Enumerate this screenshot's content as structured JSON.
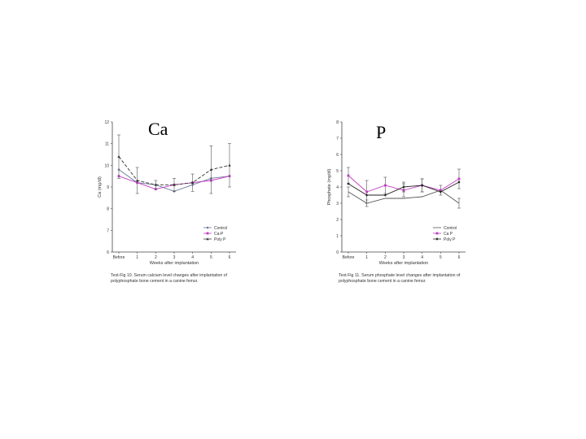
{
  "panels": {
    "left_letter": "Ca",
    "right_letter": "P"
  },
  "chart_data": [
    {
      "type": "line",
      "categories": [
        "Before",
        "1",
        "2",
        "3",
        "4",
        "5",
        "6"
      ],
      "ylabel": "Ca (mg/dl)",
      "xlabel": "Weeks after implantation",
      "ylim": [
        6,
        12
      ],
      "yticks": [
        "6",
        "7",
        "8",
        "9",
        "10",
        "11",
        "12"
      ],
      "caption": "Text-Fig 10. Serum calcium level changes after implantation of polyphosphate bone cement in a canine femur.",
      "legend_position": "bottom-right",
      "series": [
        {
          "name": "Control",
          "values": [
            9.8,
            9.2,
            9.1,
            8.8,
            9.1,
            9.4,
            9.5
          ],
          "marker": "circle",
          "color": "#6b7a99",
          "dash": "",
          "err": [
            0,
            0,
            0,
            0,
            0,
            0,
            0
          ]
        },
        {
          "name": "Ca-P",
          "values": [
            9.5,
            9.2,
            8.9,
            9.1,
            9.2,
            9.3,
            9.5
          ],
          "marker": "square",
          "color": "#c23cc0",
          "dash": "",
          "err": [
            0,
            0,
            0,
            0,
            0,
            0,
            0
          ]
        },
        {
          "name": "Poly P",
          "values": [
            10.4,
            9.3,
            9.1,
            9.1,
            9.2,
            9.8,
            10.0
          ],
          "marker": "triangle",
          "color": "#333333",
          "dash": "4,2",
          "err": [
            1.0,
            0.6,
            0.2,
            0.3,
            0.4,
            1.1,
            1.0
          ]
        }
      ]
    },
    {
      "type": "line",
      "categories": [
        "Before",
        "1",
        "2",
        "3",
        "4",
        "5",
        "6"
      ],
      "ylabel": "Phosphate (mg/dl)",
      "xlabel": "Weeks after implantation",
      "ylim": [
        0,
        8
      ],
      "yticks": [
        "0",
        "1",
        "2",
        "3",
        "4",
        "5",
        "6",
        "7",
        "8"
      ],
      "caption": "Text-Fig 11. Serum phosphate level changes after implantation of polyphosphate bone cement in a canine femur.",
      "legend_position": "bottom-right",
      "series": [
        {
          "name": "Control",
          "values": [
            3.7,
            3.0,
            3.3,
            3.3,
            3.4,
            3.8,
            3.0
          ],
          "marker": "none",
          "color": "#555555",
          "dash": "",
          "err": [
            0.3,
            0.2,
            0,
            0,
            0,
            0,
            0.3
          ]
        },
        {
          "name": "Ca P",
          "values": [
            4.7,
            3.7,
            4.1,
            3.8,
            4.1,
            3.8,
            4.5
          ],
          "marker": "square",
          "color": "#c23cc0",
          "dash": "",
          "err": [
            0.5,
            0.7,
            0.5,
            0.4,
            0.4,
            0.3,
            0.6
          ]
        },
        {
          "name": "Poly P",
          "values": [
            4.2,
            3.5,
            3.5,
            4.0,
            4.1,
            3.7,
            4.3
          ],
          "marker": "diamond",
          "color": "#222222",
          "dash": "",
          "err": [
            0,
            0,
            0,
            0.3,
            0.4,
            0,
            0
          ]
        }
      ]
    }
  ]
}
